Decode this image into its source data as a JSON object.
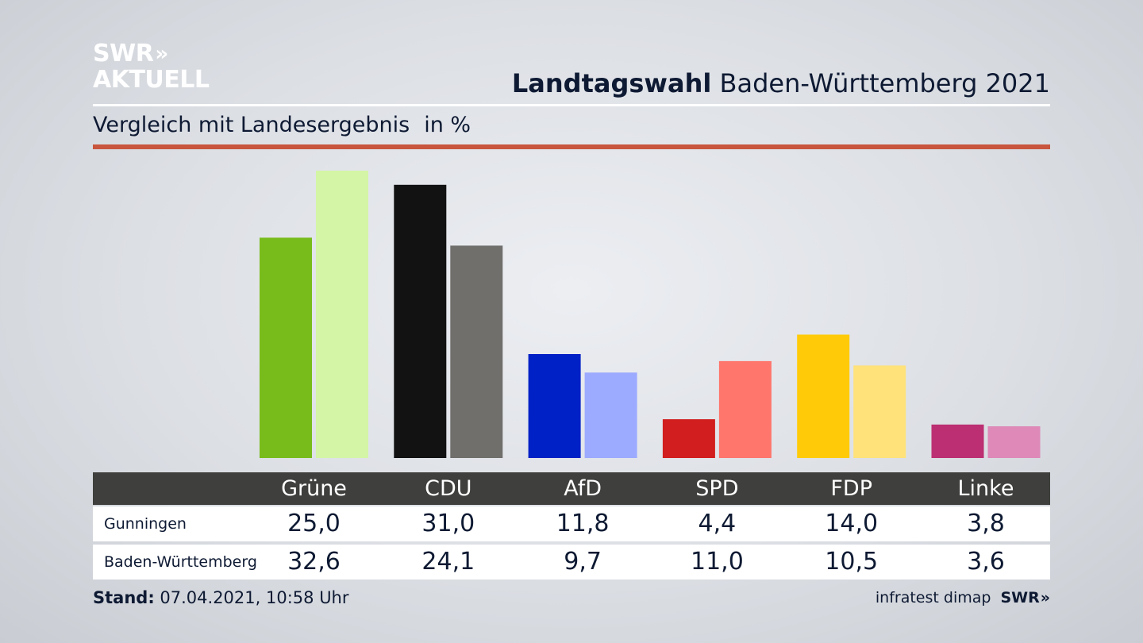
{
  "brand": {
    "line1": "SWR",
    "line2": "AKTUELL",
    "chevron": "»"
  },
  "header": {
    "title_bold": "Landtagswahl",
    "title_rest": "Baden-Württemberg 2021"
  },
  "subtitle": {
    "text": "Vergleich mit Landesergebnis",
    "unit": "in %"
  },
  "table": {
    "rows": [
      {
        "label": "Gunningen",
        "values": [
          "25,0",
          "31,0",
          "11,8",
          "4,4",
          "14,0",
          "3,8"
        ]
      },
      {
        "label": "Baden-Württemberg",
        "values": [
          "32,6",
          "24,1",
          "9,7",
          "11,0",
          "10,5",
          "3,6"
        ]
      }
    ]
  },
  "footer": {
    "stand_label": "Stand:",
    "stand_value": "07.04.2021, 10:58 Uhr",
    "source": "infratest dimap",
    "brand": "SWR"
  },
  "colors": {
    "accent_rule": "#c8553d",
    "header_band": "#3f3f3d"
  },
  "chart_data": {
    "type": "bar",
    "categories": [
      "Grüne",
      "CDU",
      "AfD",
      "SPD",
      "FDP",
      "Linke"
    ],
    "series": [
      {
        "name": "Gunningen",
        "values": [
          25.0,
          31.0,
          11.8,
          4.4,
          14.0,
          3.8
        ],
        "colors": [
          "#78bc1b",
          "#121212",
          "#0021c6",
          "#d21e1e",
          "#ffcb08",
          "#bc2f72"
        ]
      },
      {
        "name": "Baden-Württemberg",
        "values": [
          32.6,
          24.1,
          9.7,
          11.0,
          10.5,
          3.6
        ],
        "colors": [
          "#d4f5a6",
          "#706f6c",
          "#9caaff",
          "#ff766c",
          "#ffe27a",
          "#de89b8"
        ]
      }
    ],
    "ylim": [
      0,
      32.6
    ],
    "title": "Landtagswahl Baden-Württemberg 2021",
    "subtitle": "Vergleich mit Landesergebnis",
    "ylabel": "in %",
    "grid": false
  }
}
